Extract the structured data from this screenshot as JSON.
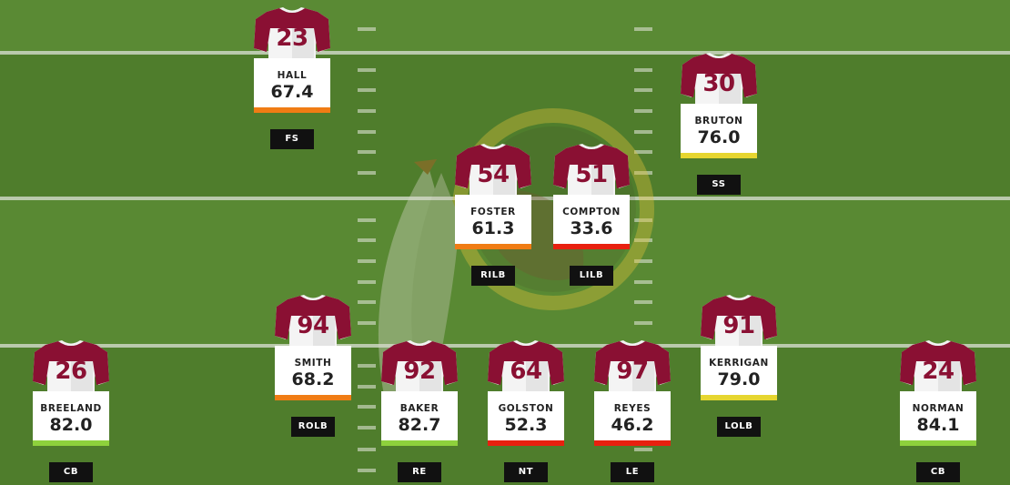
{
  "colors": {
    "jersey_maroon": "#8a1033",
    "grade_green": "#8ed13c",
    "grade_yellow": "#e6d630",
    "grade_orange": "#f07c14",
    "grade_red": "#e8200f",
    "field_green": "#54832f"
  },
  "logo": {
    "name": "redskins-logo-icon"
  },
  "players": [
    {
      "number": "23",
      "name": "HALL",
      "grade": "67.4",
      "grade_color": "#f07c14",
      "position": "FS"
    },
    {
      "number": "30",
      "name": "BRUTON",
      "grade": "76.0",
      "grade_color": "#e6d630",
      "position": "SS"
    },
    {
      "number": "54",
      "name": "FOSTER",
      "grade": "61.3",
      "grade_color": "#f07c14",
      "position": "RILB"
    },
    {
      "number": "51",
      "name": "COMPTON",
      "grade": "33.6",
      "grade_color": "#e8200f",
      "position": "LILB"
    },
    {
      "number": "94",
      "name": "SMITH",
      "grade": "68.2",
      "grade_color": "#f07c14",
      "position": "ROLB"
    },
    {
      "number": "91",
      "name": "KERRIGAN",
      "grade": "79.0",
      "grade_color": "#e6d630",
      "position": "LOLB"
    },
    {
      "number": "26",
      "name": "BREELAND",
      "grade": "82.0",
      "grade_color": "#8ed13c",
      "position": "CB"
    },
    {
      "number": "92",
      "name": "BAKER",
      "grade": "82.7",
      "grade_color": "#8ed13c",
      "position": "RE"
    },
    {
      "number": "64",
      "name": "GOLSTON",
      "grade": "52.3",
      "grade_color": "#e8200f",
      "position": "NT"
    },
    {
      "number": "97",
      "name": "REYES",
      "grade": "46.2",
      "grade_color": "#e8200f",
      "position": "LE"
    },
    {
      "number": "24",
      "name": "NORMAN",
      "grade": "84.1",
      "grade_color": "#8ed13c",
      "position": "CB"
    }
  ]
}
